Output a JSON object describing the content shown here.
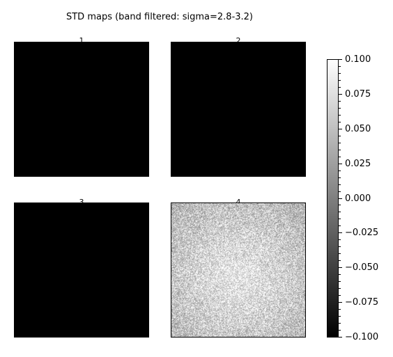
{
  "chart_data": {
    "type": "heatmap",
    "title": "STD maps (band filtered: sigma=2.8-3.2)",
    "colormap": "gray",
    "panels": [
      {
        "label": "1",
        "mean_value": -0.1,
        "description": "uniform"
      },
      {
        "label": "2",
        "mean_value": -0.1,
        "description": "uniform"
      },
      {
        "label": "3",
        "mean_value": -0.1,
        "description": "uniform"
      },
      {
        "label": "4",
        "mean_value": 0.055,
        "description": "noisy texture, brighter center"
      }
    ],
    "colorbar": {
      "vmin": -0.1,
      "vmax": 0.1,
      "ticks": [
        {
          "value": 0.1,
          "label": "0.100"
        },
        {
          "value": 0.075,
          "label": "0.075"
        },
        {
          "value": 0.05,
          "label": "0.050"
        },
        {
          "value": 0.025,
          "label": "0.025"
        },
        {
          "value": 0.0,
          "label": "0.000"
        },
        {
          "value": -0.025,
          "label": "−0.025"
        },
        {
          "value": -0.05,
          "label": "−0.050"
        },
        {
          "value": -0.075,
          "label": "−0.075"
        },
        {
          "value": -0.1,
          "label": "−0.100"
        }
      ]
    }
  }
}
